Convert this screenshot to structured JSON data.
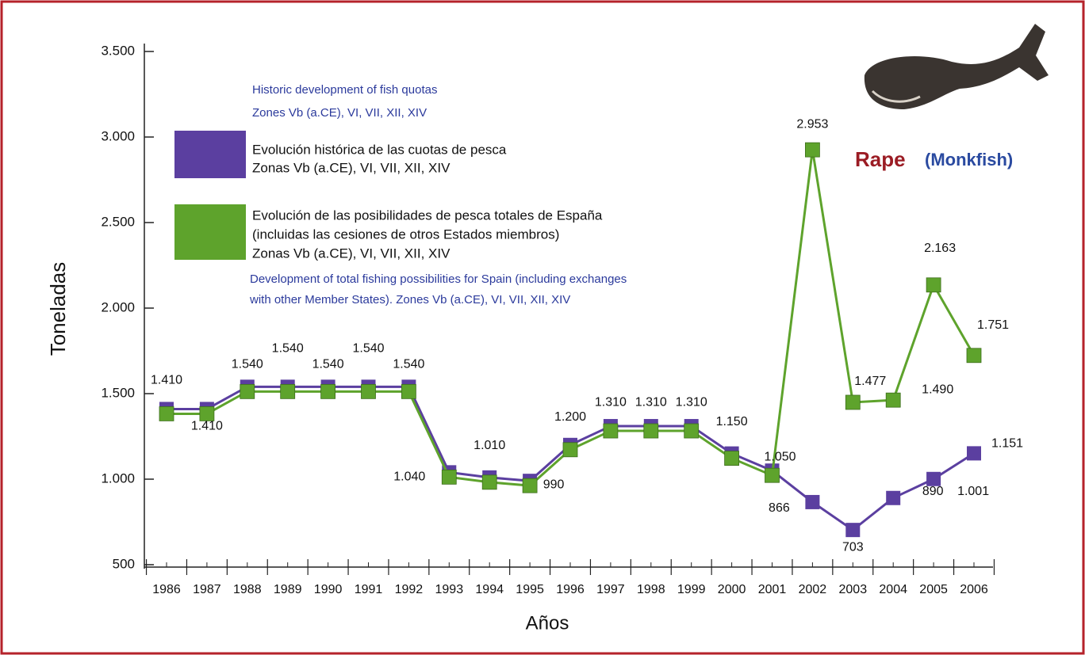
{
  "chart_data": {
    "type": "line",
    "title": "Rape",
    "subtitle": "(Monkfish)",
    "y_label": "Toneladas",
    "x_label": "Años",
    "categories": [
      "1986",
      "1987",
      "1988",
      "1989",
      "1990",
      "1991",
      "1992",
      "1993",
      "1994",
      "1995",
      "1996",
      "1997",
      "1998",
      "1999",
      "2000",
      "2001",
      "2002",
      "2003",
      "2004",
      "2005",
      "2006"
    ],
    "series": [
      {
        "name": "Evolución histórica de las cuotas de pesca",
        "name_lines": [
          "Zonas Vb (a.CE), VI, VII, XII, XIV"
        ],
        "color": "#5b3fa0",
        "values": [
          1410,
          1410,
          1540,
          1540,
          1540,
          1540,
          1540,
          1040,
          1010,
          990,
          1200,
          1310,
          1310,
          1310,
          1150,
          1050,
          866,
          703,
          890,
          1001,
          1151
        ],
        "value_labels": [
          "1.410",
          "1.410",
          "1.540",
          "1.540",
          "1.540",
          "1.540",
          "1.540",
          "1.040",
          "1.010",
          "990",
          "1.200",
          "1.310",
          "1.310",
          "1.310",
          "1.150",
          "1.050",
          "866",
          "703",
          "890",
          "1.001",
          "1.151"
        ]
      },
      {
        "name": "Evolución de las posibilidades de pesca totales de España",
        "name_lines": [
          "(incluidas las cesiones de otros Estados miembros)",
          "Zonas Vb (a.CE), VI, VII, XII, XIV"
        ],
        "color": "#5ea32c",
        "values": [
          1410,
          1410,
          1540,
          1540,
          1540,
          1540,
          1540,
          1040,
          1010,
          990,
          1200,
          1310,
          1310,
          1310,
          1150,
          1050,
          2953,
          1477,
          1490,
          2163,
          1751
        ],
        "value_labels": [
          null,
          null,
          null,
          null,
          null,
          null,
          null,
          null,
          null,
          null,
          null,
          null,
          null,
          null,
          null,
          null,
          "2.953",
          "1.477",
          "1.490",
          "2.163",
          "1.751"
        ]
      }
    ],
    "annotations": [
      "Historic development of fish quotas",
      "Zones Vb (a.CE), VI, VII, XII, XIV",
      "Development of total fishing possibilities for Spain (including exchanges",
      "with other Member States). Zones Vb (a.CE), VI, VII, XII, XIV"
    ],
    "ylim": [
      500,
      3500
    ],
    "yticks": [
      {
        "value": 3500,
        "label": "3.500"
      },
      {
        "value": 3000,
        "label": "3.000"
      },
      {
        "value": 2500,
        "label": "2.500"
      },
      {
        "value": 2000,
        "label": "2.000"
      },
      {
        "value": 1500,
        "label": "1.500"
      },
      {
        "value": 1000,
        "label": "1.000"
      },
      500
    ]
  }
}
